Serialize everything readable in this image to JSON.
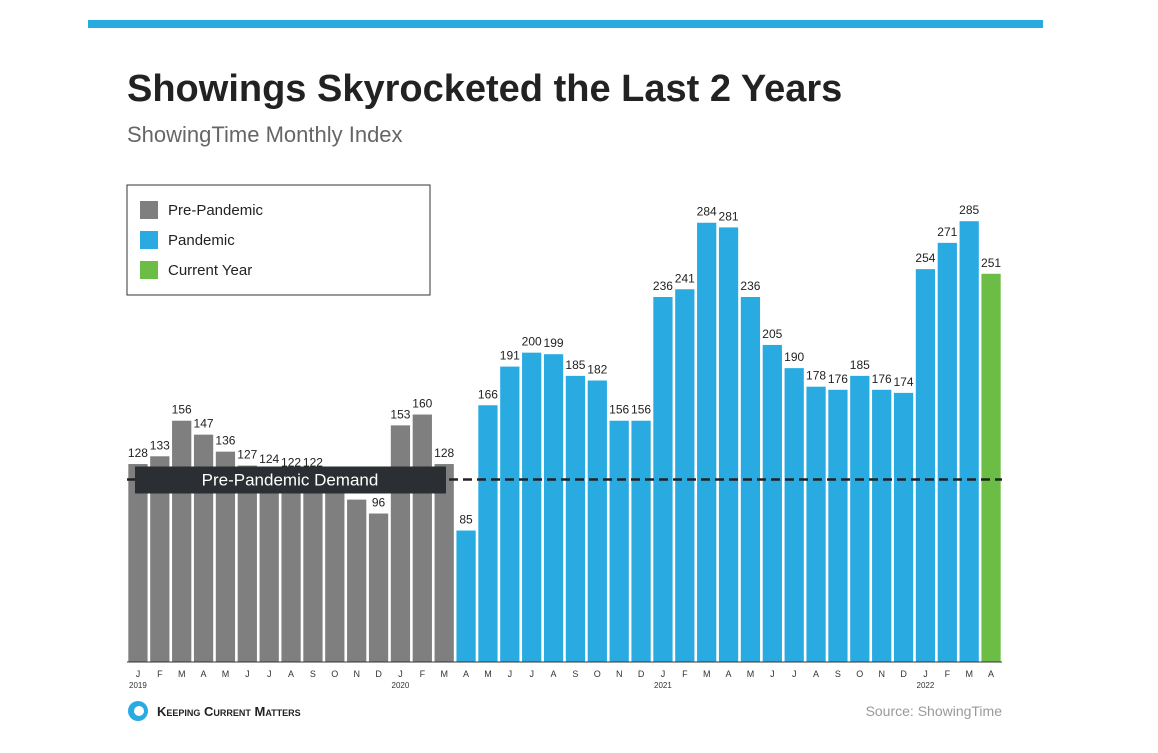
{
  "chart_data": {
    "type": "bar",
    "title": "Showings Skyrocketed the Last 2 Years",
    "subtitle": "ShowingTime Monthly Index",
    "categories": [
      "J",
      "F",
      "M",
      "A",
      "M",
      "J",
      "J",
      "A",
      "S",
      "O",
      "N",
      "D",
      "J",
      "F",
      "M",
      "A",
      "M",
      "J",
      "J",
      "A",
      "S",
      "O",
      "N",
      "D",
      "J",
      "F",
      "M",
      "A",
      "M",
      "J",
      "J",
      "A",
      "S",
      "O",
      "N",
      "D",
      "J",
      "F",
      "M",
      "A"
    ],
    "category_years": [
      "2019",
      null,
      null,
      null,
      null,
      null,
      null,
      null,
      null,
      null,
      null,
      null,
      "2020",
      null,
      null,
      null,
      null,
      null,
      null,
      null,
      null,
      null,
      null,
      null,
      "2021",
      null,
      null,
      null,
      null,
      null,
      null,
      null,
      null,
      null,
      null,
      null,
      "2022",
      null,
      null,
      null
    ],
    "series": [
      {
        "name": "Pre-Pandemic",
        "color": "#7f7f7f",
        "values": [
          128,
          133,
          156,
          147,
          136,
          127,
          124,
          122,
          122,
          115,
          105,
          96,
          153,
          160,
          128,
          null,
          null,
          null,
          null,
          null,
          null,
          null,
          null,
          null,
          null,
          null,
          null,
          null,
          null,
          null,
          null,
          null,
          null,
          null,
          null,
          null,
          null,
          null,
          null,
          null
        ],
        "value_labels": [
          "128",
          "133",
          "156",
          "147",
          "136",
          "127",
          "124",
          "122",
          "122",
          null,
          null,
          "96",
          "153",
          "160",
          "128",
          null,
          null,
          null,
          null,
          null,
          null,
          null,
          null,
          null,
          null,
          null,
          null,
          null,
          null,
          null,
          null,
          null,
          null,
          null,
          null,
          null,
          null,
          null,
          null,
          null
        ]
      },
      {
        "name": "Pandemic",
        "color": "#29abe2",
        "values": [
          null,
          null,
          null,
          null,
          null,
          null,
          null,
          null,
          null,
          null,
          null,
          null,
          null,
          null,
          null,
          85,
          166,
          191,
          200,
          199,
          185,
          182,
          156,
          156,
          236,
          241,
          284,
          281,
          236,
          205,
          190,
          178,
          176,
          185,
          176,
          174,
          254,
          271,
          285,
          null
        ]
      },
      {
        "name": "Current Year",
        "color": "#6cbd45",
        "values": [
          null,
          null,
          null,
          null,
          null,
          null,
          null,
          null,
          null,
          null,
          null,
          null,
          null,
          null,
          null,
          null,
          null,
          null,
          null,
          null,
          null,
          null,
          null,
          null,
          null,
          null,
          null,
          null,
          null,
          null,
          null,
          null,
          null,
          null,
          null,
          null,
          null,
          null,
          null,
          251
        ]
      }
    ],
    "ylim": [
      0,
      300
    ],
    "reference_line": {
      "value": 118,
      "label": "Pre-Pandemic Demand"
    },
    "brand": "Keeping Current Matters",
    "source": "Source: ShowingTime"
  }
}
